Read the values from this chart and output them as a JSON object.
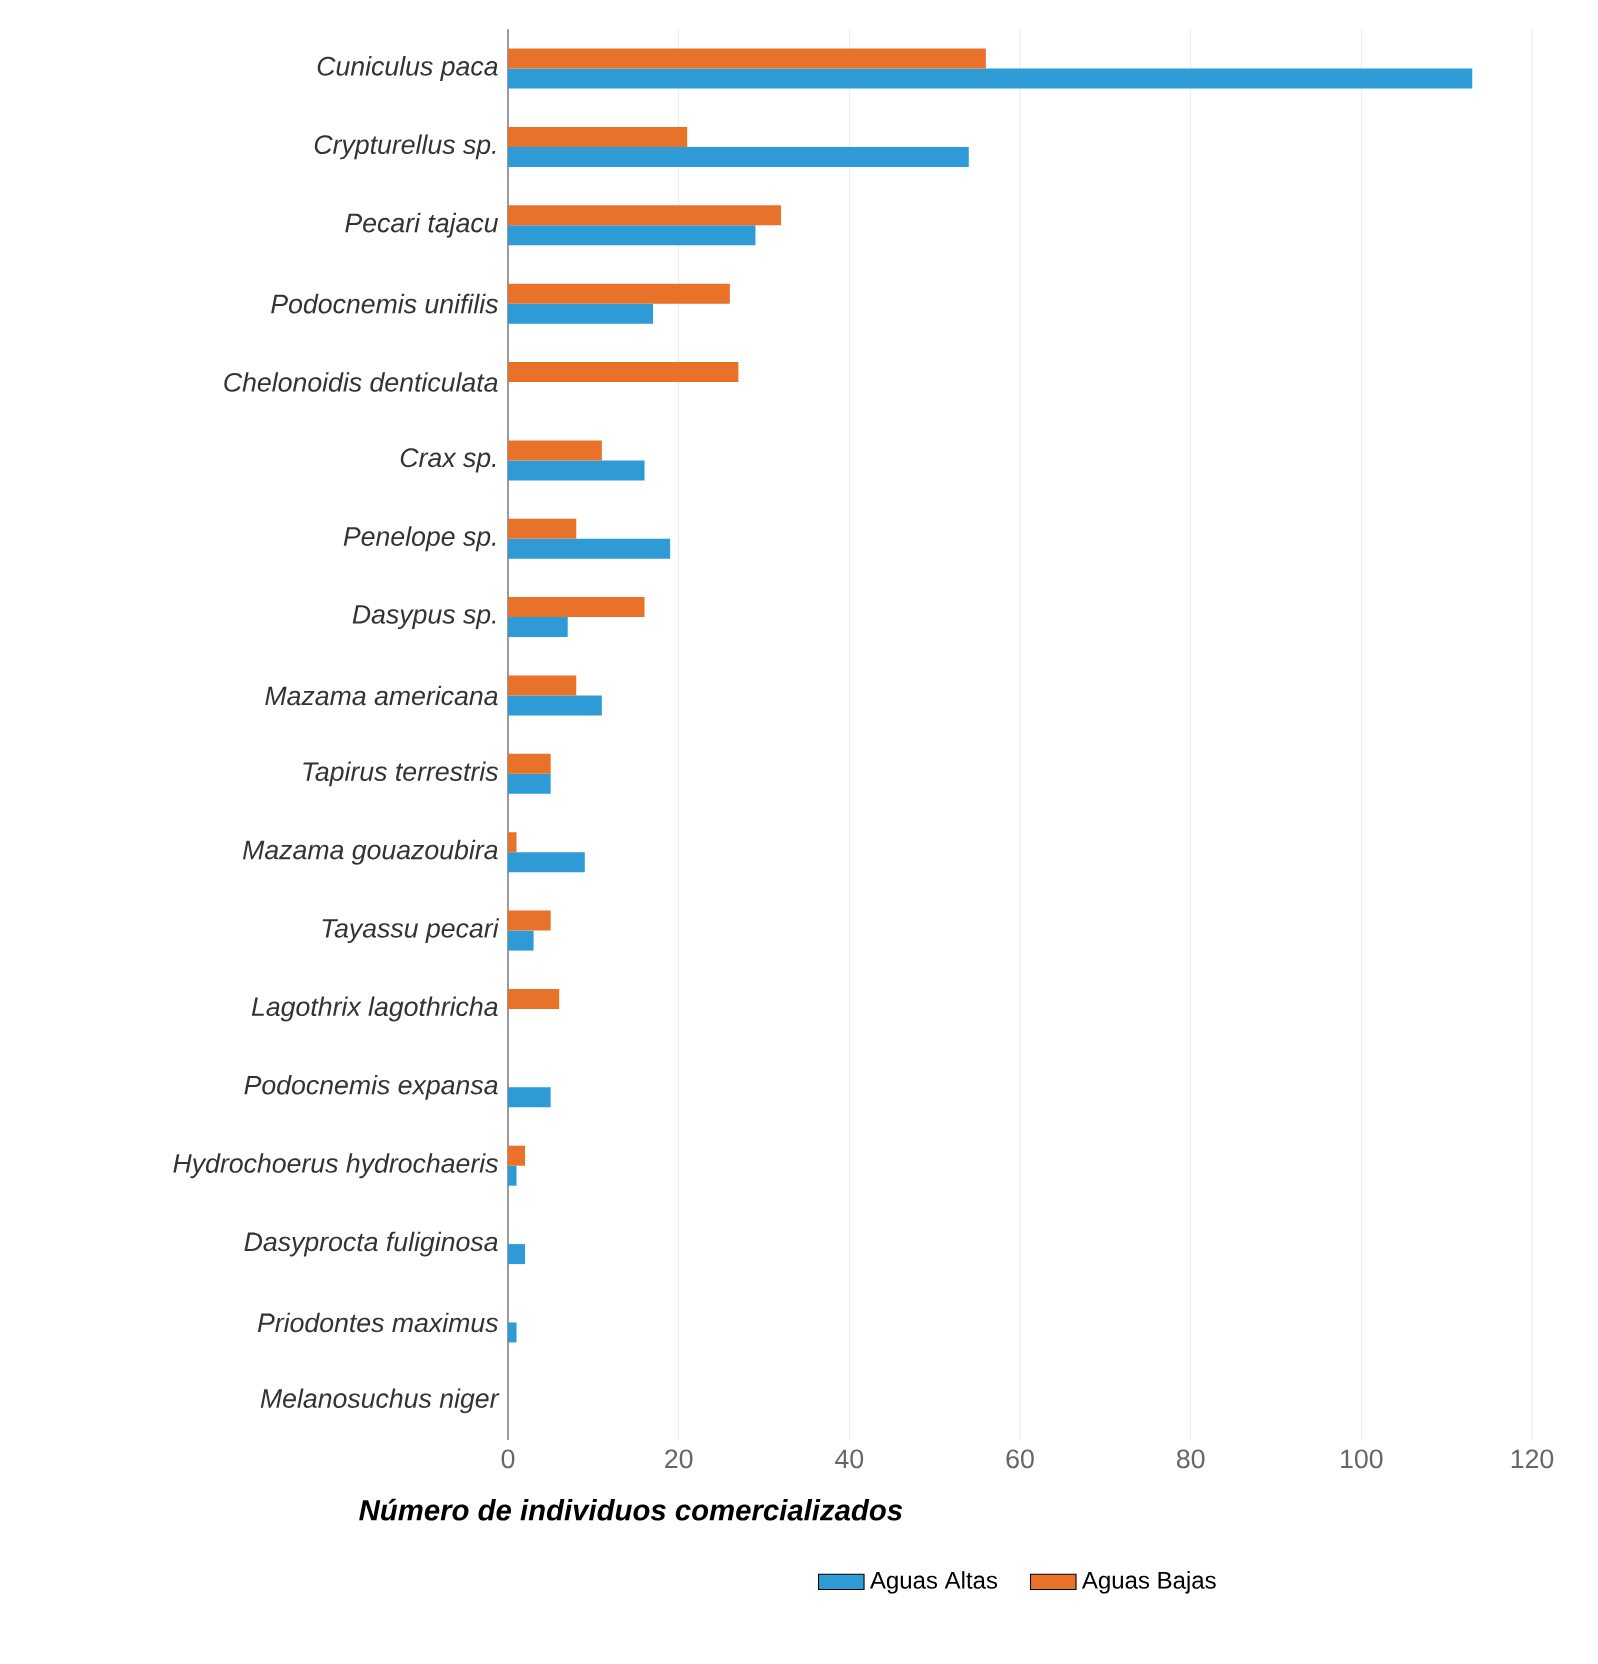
{
  "chart_data": {
    "type": "bar",
    "orientation": "horizontal",
    "xlabel": "**Número de individuos comercializados**",
    "categories": [
      "Cuniculus paca",
      "Crypturellus sp.",
      "Pecari tajacu",
      "Podocnemis unifilis",
      "Chelonoidis denticulata",
      "Crax sp.",
      "Penelope sp.",
      "Dasypus sp.",
      "Mazama americana",
      "Tapirus terrestris",
      "Mazama gouazoubira",
      "Tayassu pecari",
      "Lagothrix lagothricha",
      "Podocnemis expansa",
      "Hydrochoerus hydrochaeris",
      "Dasyprocta fuliginosa",
      "Priodontes maximus",
      "Melanosuchus niger"
    ],
    "series": [
      {
        "name": "Aguas Altas",
        "color": "#2e9bd6",
        "values": [
          113,
          54,
          29,
          17,
          null,
          16,
          19,
          7,
          11,
          5,
          9,
          3,
          null,
          5,
          1,
          2,
          1,
          null
        ]
      },
      {
        "name": "Aguas Bajas",
        "color": "#e8722a",
        "values": [
          56,
          21,
          32,
          26,
          27,
          11,
          8,
          16,
          8,
          5,
          1,
          5,
          6,
          null,
          2,
          null,
          null,
          null
        ]
      }
    ],
    "xlim": [
      0,
      120
    ],
    "xticks": [
      0,
      20,
      40,
      60,
      80,
      100,
      120
    ],
    "grid": "x",
    "legend": "bottom"
  }
}
